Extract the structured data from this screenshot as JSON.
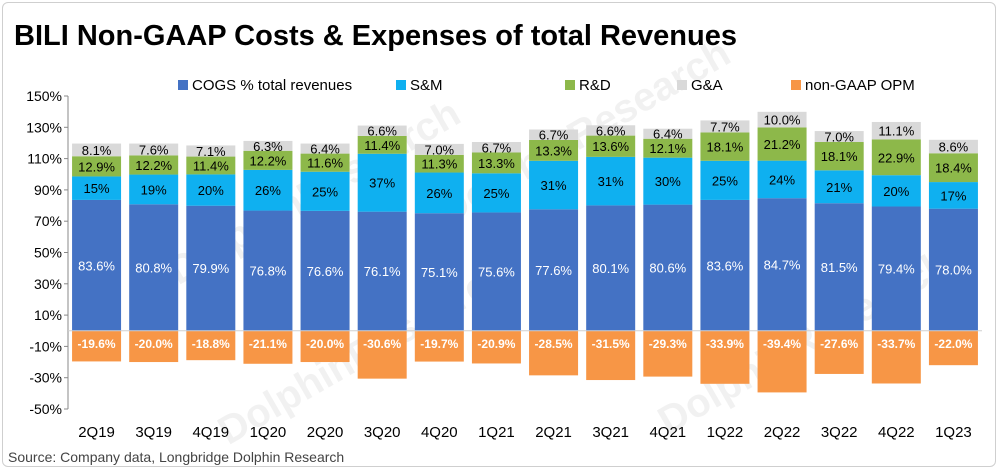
{
  "title": "BILI Non-GAAP Costs & Expenses of total Revenues",
  "source": "Source: Company data, Longbridge Dolphin Research",
  "watermark": "DolphinResearch",
  "chart_data": {
    "type": "bar",
    "stacked": true,
    "categories": [
      "2Q19",
      "3Q19",
      "4Q19",
      "1Q20",
      "2Q20",
      "3Q20",
      "4Q20",
      "1Q21",
      "2Q21",
      "3Q21",
      "4Q21",
      "1Q22",
      "2Q22",
      "3Q22",
      "4Q22",
      "1Q23"
    ],
    "ylim": [
      -50,
      150
    ],
    "yticks": [
      150,
      130,
      110,
      90,
      70,
      50,
      30,
      10,
      -10,
      -30,
      -50
    ],
    "ytick_labels": [
      "150%",
      "130%",
      "110%",
      "90%",
      "70%",
      "50%",
      "30%",
      "10%",
      "-10%",
      "-30%",
      "-50%"
    ],
    "grid": false,
    "legend_position": "top",
    "series": [
      {
        "name": "COGS % total revenues",
        "color": "#4472C4",
        "values": [
          83.6,
          80.8,
          79.9,
          76.8,
          76.6,
          76.1,
          75.1,
          75.6,
          77.6,
          80.1,
          80.6,
          83.6,
          84.7,
          81.5,
          79.4,
          78.0
        ],
        "labels": [
          "83.6%",
          "80.8%",
          "79.9%",
          "76.8%",
          "76.6%",
          "76.1%",
          "75.1%",
          "75.6%",
          "77.6%",
          "80.1%",
          "80.6%",
          "83.6%",
          "84.7%",
          "81.5%",
          "79.4%",
          "78.0%"
        ]
      },
      {
        "name": "S&M",
        "color": "#0FB0F0",
        "values": [
          15,
          19,
          20,
          26,
          25,
          37,
          26,
          25,
          31,
          31,
          30,
          25,
          24,
          21,
          20,
          17
        ],
        "labels": [
          "15%",
          "19%",
          "20%",
          "26%",
          "25%",
          "37%",
          "26%",
          "25%",
          "31%",
          "31%",
          "30%",
          "25%",
          "24%",
          "21%",
          "20%",
          "17%"
        ]
      },
      {
        "name": "R&D",
        "color": "#8DB84A",
        "values": [
          12.9,
          12.2,
          11.4,
          12.2,
          11.6,
          11.4,
          11.3,
          13.3,
          13.3,
          13.6,
          12.1,
          18.1,
          21.2,
          18.1,
          22.9,
          18.4
        ],
        "labels": [
          "12.9%",
          "12.2%",
          "11.4%",
          "12.2%",
          "11.6%",
          "11.4%",
          "11.3%",
          "13.3%",
          "13.3%",
          "13.6%",
          "12.1%",
          "18.1%",
          "21.2%",
          "18.1%",
          "22.9%",
          "18.4%"
        ]
      },
      {
        "name": "G&A",
        "color": "#D9D9D9",
        "values": [
          8.1,
          7.6,
          7.1,
          6.3,
          6.4,
          6.6,
          7.0,
          6.7,
          6.7,
          6.6,
          6.4,
          7.7,
          10.0,
          7.0,
          11.1,
          8.6
        ],
        "labels": [
          "8.1%",
          "7.6%",
          "7.1%",
          "6.3%",
          "6.4%",
          "6.6%",
          "7.0%",
          "6.7%",
          "6.7%",
          "6.6%",
          "6.4%",
          "7.7%",
          "10.0%",
          "7.0%",
          "11.1%",
          "8.6%"
        ]
      },
      {
        "name": "non-GAAP OPM",
        "color": "#F79646",
        "values": [
          -19.6,
          -20.0,
          -18.8,
          -21.1,
          -20.0,
          -30.6,
          -19.7,
          -20.9,
          -28.5,
          -31.5,
          -29.3,
          -33.9,
          -39.4,
          -27.6,
          -33.7,
          -22.0
        ],
        "labels": [
          "-19.6%",
          "-20.0%",
          "-18.8%",
          "-21.1%",
          "-20.0%",
          "-30.6%",
          "-19.7%",
          "-20.9%",
          "-28.5%",
          "-31.5%",
          "-29.3%",
          "-33.9%",
          "-39.4%",
          "-27.6%",
          "-33.7%",
          "-22.0%"
        ]
      }
    ]
  }
}
